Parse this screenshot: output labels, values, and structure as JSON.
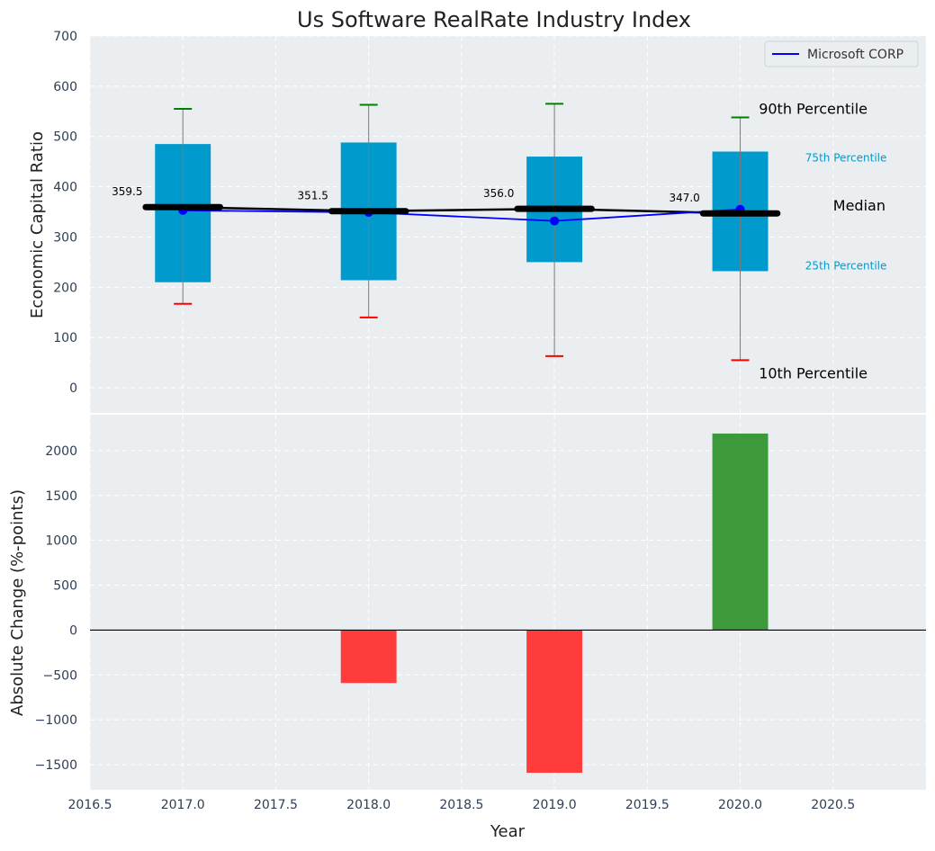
{
  "chart_data": [
    {
      "type": "box",
      "title": "Us Software RealRate Industry Index",
      "ylabel": "Economic Capital Ratio",
      "xlabel": "",
      "ylim": [
        -50,
        700
      ],
      "yticks": [
        0,
        100,
        200,
        300,
        400,
        500,
        600,
        700
      ],
      "xlim": [
        2016.5,
        2021.0
      ],
      "grid": true,
      "legend": {
        "position": "top-right",
        "entries": [
          "Microsoft CORP"
        ]
      },
      "boxes": [
        {
          "year": 2017,
          "p10": 167,
          "p25": 210,
          "median": 359.5,
          "p75": 485,
          "p90": 555,
          "median_label": "359.5"
        },
        {
          "year": 2018,
          "p10": 140,
          "p25": 214,
          "median": 351.5,
          "p75": 488,
          "p90": 563,
          "median_label": "351.5"
        },
        {
          "year": 2019,
          "p10": 63,
          "p25": 250,
          "median": 356.0,
          "p75": 460,
          "p90": 565,
          "median_label": "356.0"
        },
        {
          "year": 2020,
          "p10": 55,
          "p25": 232,
          "median": 347.0,
          "p75": 470,
          "p90": 538,
          "median_label": "347.0"
        }
      ],
      "series": [
        {
          "name": "Microsoft CORP",
          "x": [
            2017,
            2018,
            2019,
            2020
          ],
          "values": [
            353,
            349,
            332,
            355
          ],
          "color": "#0000ff"
        }
      ],
      "annotations": {
        "p90": "90th Percentile",
        "p75": "75th Percentile",
        "median": "Median",
        "p25": "25th Percentile",
        "p10": "10th Percentile"
      },
      "colors": {
        "box": "#009acd",
        "median": "#000000",
        "p90_cap": "#008000",
        "p10_cap": "#ff0000",
        "series": "#0000ff",
        "percentile_text": "#009acd"
      }
    },
    {
      "type": "bar",
      "ylabel": "Absolute Change (%-points)",
      "xlabel": "Year",
      "ylim": [
        -1780,
        2400
      ],
      "yticks": [
        -1500,
        -1000,
        -500,
        0,
        500,
        1000,
        1500,
        2000
      ],
      "xlim": [
        2016.5,
        2021.0
      ],
      "xticks": [
        2016.5,
        2017.0,
        2017.5,
        2018.0,
        2018.5,
        2019.0,
        2019.5,
        2020.0,
        2020.5
      ],
      "grid": true,
      "bars": [
        {
          "x": 2018,
          "value": -590
        },
        {
          "x": 2019,
          "value": -1590
        },
        {
          "x": 2020,
          "value": 2190
        }
      ],
      "colors": {
        "positive": "#3c9a3c",
        "negative": "#ff3c3c",
        "zero_line": "#000000"
      }
    }
  ]
}
